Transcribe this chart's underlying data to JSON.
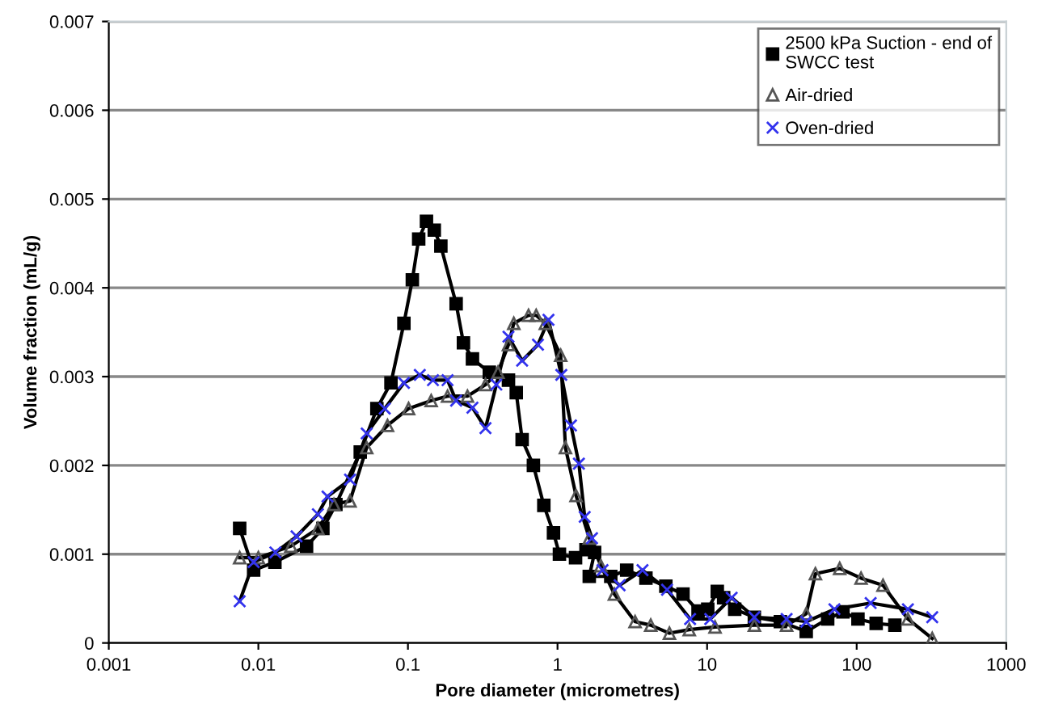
{
  "chart_data": {
    "type": "line",
    "xlabel": "Pore diameter (micrometres)",
    "ylabel": "Volume fraction (mL/g)",
    "log": "x",
    "grid": "y",
    "legend": "top right",
    "xlim": [
      0.001,
      1000
    ],
    "xticks": [
      0.001,
      0.01,
      0.1,
      1,
      10,
      100,
      1000
    ],
    "ylim": [
      0,
      0.007
    ],
    "yticks": [
      0,
      0.001,
      0.002,
      0.003,
      0.004,
      0.005,
      0.006,
      0.007
    ],
    "series": [
      {
        "name": "2500 kPa Suction - end of SWCC test",
        "color": "#000000",
        "marker": "square",
        "x": [
          0.0075,
          0.0093,
          0.0129,
          0.021,
          0.027,
          0.033,
          0.048,
          0.062,
          0.077,
          0.094,
          0.107,
          0.118,
          0.133,
          0.15,
          0.166,
          0.21,
          0.235,
          0.27,
          0.35,
          0.47,
          0.53,
          0.58,
          0.69,
          0.81,
          0.94,
          1.03,
          1.32,
          1.55,
          1.77,
          1.63,
          2.27,
          2.9,
          3.9,
          5.3,
          6.9,
          8.7,
          10.1,
          11.7,
          12.9,
          15.3,
          20.7,
          30.9,
          46,
          64,
          81,
          102,
          135,
          180
        ],
        "values": [
          0.00129,
          0.00082,
          0.00091,
          0.00109,
          0.00129,
          0.00156,
          0.00215,
          0.00264,
          0.00293,
          0.0036,
          0.00409,
          0.00455,
          0.00475,
          0.00465,
          0.00447,
          0.00382,
          0.00338,
          0.0032,
          0.00305,
          0.00296,
          0.00282,
          0.00229,
          0.002,
          0.00155,
          0.00124,
          0.001,
          0.00096,
          0.00105,
          0.00102,
          0.00075,
          0.00075,
          0.00082,
          0.00073,
          0.00064,
          0.00055,
          0.00036,
          0.00038,
          0.00058,
          0.00051,
          0.00038,
          0.00029,
          0.00024,
          0.00013,
          0.00027,
          0.00035,
          0.00027,
          0.00022,
          0.0002
        ]
      },
      {
        "name": "Air-dried",
        "color": "#555555",
        "marker": "triangle",
        "x": [
          0.0075,
          0.01,
          0.0165,
          0.025,
          0.032,
          0.041,
          0.053,
          0.073,
          0.101,
          0.143,
          0.184,
          0.25,
          0.33,
          0.4,
          0.47,
          0.51,
          0.64,
          0.72,
          0.83,
          1.05,
          1.13,
          1.33,
          1.63,
          1.95,
          2.4,
          3.3,
          4.2,
          5.6,
          7.6,
          11.3,
          20.7,
          34,
          46,
          53,
          77,
          107,
          150,
          220,
          320
        ],
        "values": [
          0.00096,
          0.00096,
          0.00109,
          0.00129,
          0.00156,
          0.0016,
          0.0022,
          0.00245,
          0.00264,
          0.00273,
          0.00278,
          0.00278,
          0.00291,
          0.00305,
          0.00336,
          0.0036,
          0.00369,
          0.00369,
          0.0036,
          0.00324,
          0.0022,
          0.00166,
          0.00118,
          0.00087,
          0.00055,
          0.00024,
          0.0002,
          0.00011,
          0.00015,
          0.00018,
          0.0002,
          0.0002,
          0.00033,
          0.00078,
          0.00084,
          0.00073,
          0.00065,
          0.00027,
          5e-05
        ]
      },
      {
        "name": "Oven-dried",
        "color": "#3333ee",
        "marker": "cross",
        "x": [
          0.0075,
          0.0093,
          0.013,
          0.018,
          0.025,
          0.029,
          0.041,
          0.053,
          0.07,
          0.094,
          0.12,
          0.147,
          0.184,
          0.21,
          0.27,
          0.33,
          0.39,
          0.47,
          0.58,
          0.74,
          0.87,
          1.06,
          1.23,
          1.39,
          1.52,
          1.7,
          2.0,
          2.6,
          3.7,
          5.4,
          7.7,
          10.5,
          14.6,
          20.7,
          34,
          46,
          71,
          124,
          220,
          320
        ],
        "values": [
          0.00047,
          0.00091,
          0.00102,
          0.0012,
          0.00145,
          0.00165,
          0.00184,
          0.00236,
          0.00264,
          0.00293,
          0.00302,
          0.00296,
          0.00296,
          0.00273,
          0.00265,
          0.00242,
          0.00291,
          0.00345,
          0.00318,
          0.00336,
          0.00364,
          0.00302,
          0.00245,
          0.00202,
          0.00142,
          0.00118,
          0.00082,
          0.00065,
          0.00082,
          0.0006,
          0.00027,
          0.00027,
          0.00051,
          0.00029,
          0.00027,
          0.00024,
          0.00038,
          0.00045,
          0.00038,
          0.00029
        ]
      }
    ]
  }
}
